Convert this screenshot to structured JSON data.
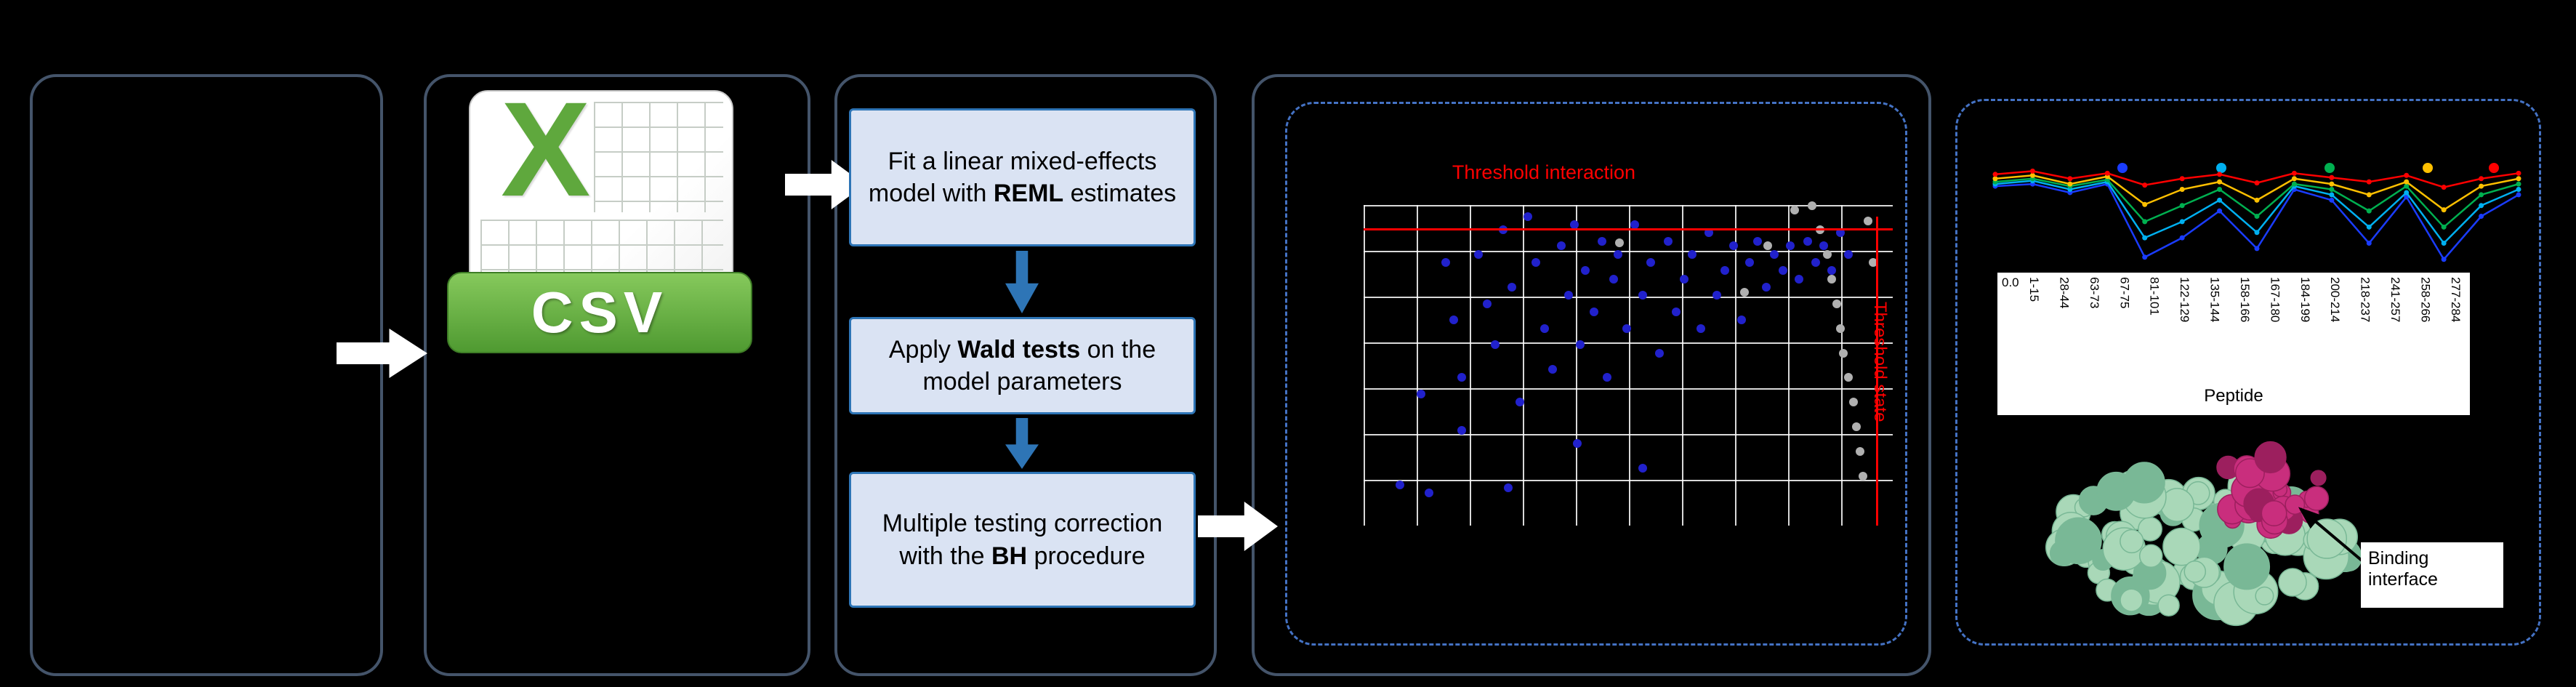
{
  "canvas": {
    "background": "#000000"
  },
  "palette": {
    "panel_border": "#44546a",
    "dashed_border": "#4472c4",
    "box_fill": "#dae3f3",
    "box_border": "#2e75b6",
    "threshold_red": "#ff0000",
    "significant_blue": "#2121cc",
    "nonsignificant_gray": "#b0b0b0"
  },
  "csv_icon": {
    "x_letter": "X",
    "label": "CSV",
    "green": "#5fa83d"
  },
  "flow_steps": [
    {
      "pre": "Fit a linear mixed-effects model with ",
      "bold": "REML",
      "post": " estimates"
    },
    {
      "pre": "Apply ",
      "bold": "Wald tests",
      "post": " on the model parameters"
    },
    {
      "pre": "Multiple testing correction with the ",
      "bold": "BH",
      "post": " procedure"
    }
  ],
  "structure": {
    "caption": "Binding interface",
    "green": "#a9d8b8",
    "green_edge": "#79b896",
    "magenta": "#c92e7d",
    "magenta_edge": "#9c1f5e"
  },
  "chart_data": [
    {
      "type": "scatter",
      "title": "Threshold interaction",
      "ylabel_right": "Threshold state",
      "grid": true,
      "thresholds": {
        "h": 0.073,
        "v": 0.968,
        "color": "#ff0000"
      },
      "series": [
        {
          "name": "significant-peptides",
          "color": "#2121cc",
          "points": [
            [
              0.068,
              0.872
            ],
            [
              0.109,
              0.59
            ],
            [
              0.124,
              0.897
            ],
            [
              0.155,
              0.179
            ],
            [
              0.171,
              0.359
            ],
            [
              0.186,
              0.538
            ],
            [
              0.186,
              0.703
            ],
            [
              0.217,
              0.154
            ],
            [
              0.233,
              0.308
            ],
            [
              0.248,
              0.436
            ],
            [
              0.264,
              0.077
            ],
            [
              0.273,
              0.882
            ],
            [
              0.28,
              0.256
            ],
            [
              0.295,
              0.615
            ],
            [
              0.311,
              0.036
            ],
            [
              0.326,
              0.179
            ],
            [
              0.342,
              0.385
            ],
            [
              0.357,
              0.513
            ],
            [
              0.373,
              0.128
            ],
            [
              0.388,
              0.282
            ],
            [
              0.398,
              0.062
            ],
            [
              0.404,
              0.744
            ],
            [
              0.41,
              0.436
            ],
            [
              0.419,
              0.205
            ],
            [
              0.435,
              0.333
            ],
            [
              0.45,
              0.113
            ],
            [
              0.46,
              0.538
            ],
            [
              0.472,
              0.231
            ],
            [
              0.481,
              0.154
            ],
            [
              0.497,
              0.385
            ],
            [
              0.512,
              0.062
            ],
            [
              0.528,
              0.282
            ],
            [
              0.528,
              0.821
            ],
            [
              0.543,
              0.179
            ],
            [
              0.559,
              0.462
            ],
            [
              0.575,
              0.113
            ],
            [
              0.59,
              0.333
            ],
            [
              0.606,
              0.231
            ],
            [
              0.621,
              0.154
            ],
            [
              0.637,
              0.385
            ],
            [
              0.652,
              0.087
            ],
            [
              0.668,
              0.282
            ],
            [
              0.683,
              0.205
            ],
            [
              0.699,
              0.128
            ],
            [
              0.714,
              0.359
            ],
            [
              0.73,
              0.179
            ],
            [
              0.745,
              0.113
            ],
            [
              0.761,
              0.256
            ],
            [
              0.776,
              0.154
            ],
            [
              0.792,
              0.205
            ],
            [
              0.807,
              0.128
            ],
            [
              0.823,
              0.231
            ],
            [
              0.839,
              0.113
            ],
            [
              0.854,
              0.179
            ],
            [
              0.87,
              0.128
            ],
            [
              0.885,
              0.205
            ],
            [
              0.901,
              0.087
            ],
            [
              0.916,
              0.154
            ]
          ]
        },
        {
          "name": "non-significant-peptides",
          "color": "#b0b0b0",
          "points": [
            [
              0.814,
              0.015
            ],
            [
              0.848,
              0.002
            ],
            [
              0.863,
              0.077
            ],
            [
              0.876,
              0.154
            ],
            [
              0.885,
              0.231
            ],
            [
              0.894,
              0.308
            ],
            [
              0.901,
              0.385
            ],
            [
              0.907,
              0.462
            ],
            [
              0.916,
              0.538
            ],
            [
              0.926,
              0.615
            ],
            [
              0.932,
              0.692
            ],
            [
              0.938,
              0.769
            ],
            [
              0.944,
              0.846
            ],
            [
              0.72,
              0.272
            ],
            [
              0.764,
              0.128
            ],
            [
              0.484,
              0.118
            ],
            [
              0.953,
              0.051
            ],
            [
              0.963,
              0.179
            ]
          ]
        }
      ]
    },
    {
      "type": "line",
      "xlabel": "Peptide",
      "y_tick_labels": [
        "0.0"
      ],
      "categories": [
        "1-15",
        "28-44",
        "63-73",
        "67-75",
        "81-101",
        "122-129",
        "135-144",
        "158-166",
        "167-180",
        "184-199",
        "200-214",
        "218-237",
        "241-257",
        "258-266",
        "277-284"
      ],
      "legend_dot_colors": [
        "#1a3cff",
        "#00b0f0",
        "#00b050",
        "#ffc000",
        "#ff0000"
      ],
      "legend_dot_x": [
        0.253,
        0.435,
        0.633,
        0.813,
        0.935
      ],
      "series": [
        {
          "name": "blue",
          "color": "#1a3cff",
          "values": [
            0.79,
            0.81,
            0.73,
            0.81,
            0.13,
            0.31,
            0.56,
            0.21,
            0.76,
            0.66,
            0.26,
            0.69,
            0.11,
            0.51,
            0.71
          ]
        },
        {
          "name": "cyan",
          "color": "#00b0f0",
          "values": [
            0.81,
            0.84,
            0.76,
            0.83,
            0.31,
            0.46,
            0.66,
            0.36,
            0.79,
            0.71,
            0.41,
            0.73,
            0.26,
            0.61,
            0.76
          ]
        },
        {
          "name": "green",
          "color": "#00b050",
          "values": [
            0.83,
            0.86,
            0.79,
            0.85,
            0.46,
            0.61,
            0.76,
            0.51,
            0.81,
            0.76,
            0.56,
            0.79,
            0.41,
            0.71,
            0.81
          ]
        },
        {
          "name": "yellow",
          "color": "#ffc000",
          "values": [
            0.86,
            0.89,
            0.81,
            0.88,
            0.62,
            0.76,
            0.83,
            0.66,
            0.86,
            0.81,
            0.71,
            0.83,
            0.57,
            0.79,
            0.86
          ]
        },
        {
          "name": "red",
          "color": "#ff0000",
          "values": [
            0.9,
            0.93,
            0.86,
            0.91,
            0.8,
            0.86,
            0.9,
            0.82,
            0.91,
            0.87,
            0.83,
            0.89,
            0.78,
            0.86,
            0.91
          ]
        }
      ]
    }
  ]
}
